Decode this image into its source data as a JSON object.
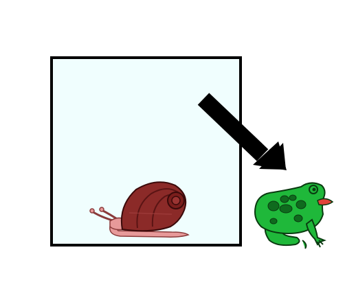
{
  "scene": {
    "background_color": "#ffffff",
    "container": {
      "icon": "box-outline",
      "fill_color": "#f0fefe",
      "stroke_color": "#000000"
    },
    "snail": {
      "icon": "snail-icon",
      "shell_color": "#8b2a28",
      "shell_dark_color": "#5a1414",
      "body_color": "#e79a9a",
      "body_outline_color": "#8a3a3a"
    },
    "arrow": {
      "icon": "arrow-down-right-icon",
      "color": "#000000"
    },
    "frog": {
      "icon": "frog-icon",
      "body_color": "#1fb83a",
      "spot_color": "#0f6a1e",
      "outline_color": "#0a3a10",
      "mouth_color": "#e0443a"
    }
  }
}
